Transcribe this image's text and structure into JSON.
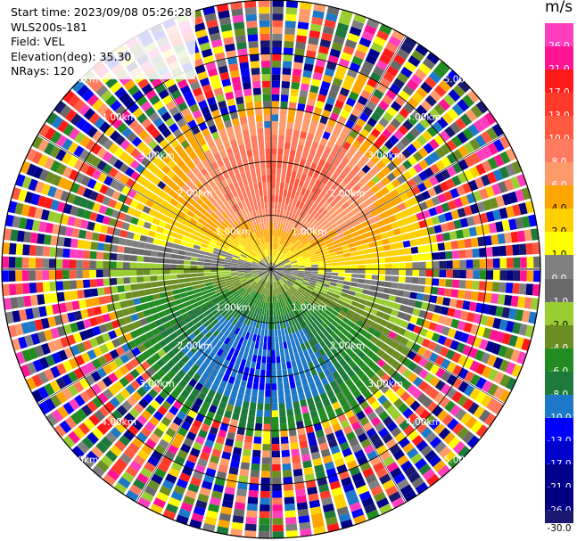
{
  "info": {
    "start_time": "Start time: 2023/09/08 05:26:28",
    "instrument": "WLS200s-181",
    "field": "Field: VEL",
    "elevation": "Elevation(deg): 35.30",
    "nrays": "NRays: 120"
  },
  "colorbar": {
    "unit": "m/s",
    "labels": [
      "26.0",
      "21.0",
      "17.0",
      "13.0",
      "10.0",
      "8.0",
      "6.0",
      "4.0",
      "2.0",
      "1.0",
      "0.0",
      "-1.0",
      "-2.0",
      "-4.0",
      "-6.0",
      "-8.0",
      "-10.0",
      "-13.0",
      "-17.0",
      "-21.0",
      "-26.0",
      "-30.0"
    ],
    "colors": [
      "#ff3ebd",
      "#ff1493",
      "#ff1a1a",
      "#ff3a2a",
      "#ff5a3f",
      "#ff7a5e",
      "#ff9a6a",
      "#ffa500",
      "#ffd000",
      "#ffff00",
      "#808080",
      "#6a6a6a",
      "#9acd32",
      "#6b8e23",
      "#228b22",
      "#1e7a3a",
      "#1e78c8",
      "#0000ff",
      "#0000cd",
      "#00008b",
      "#000080",
      "#191970"
    ]
  },
  "chart_data": {
    "type": "ppi",
    "field": "VEL",
    "elevation_deg": 35.3,
    "n_rays": 120,
    "units": "m/s",
    "range_rings_km": [
      1.0,
      2.0,
      3.0,
      4.0,
      5.0
    ],
    "ring_labels": [
      "1.00km",
      "2.00km",
      "3.00km",
      "4.00km",
      "5.00km"
    ],
    "max_range_km": 5.0,
    "gates_per_ray": 40,
    "clean_range_km": 3.0,
    "velocity_pattern": {
      "description": "positive (receding) velocities to the north, negative (approaching) to the south, zero-line roughly east-west",
      "max_positive_ms": 10.0,
      "max_negative_ms": -10.0
    }
  }
}
